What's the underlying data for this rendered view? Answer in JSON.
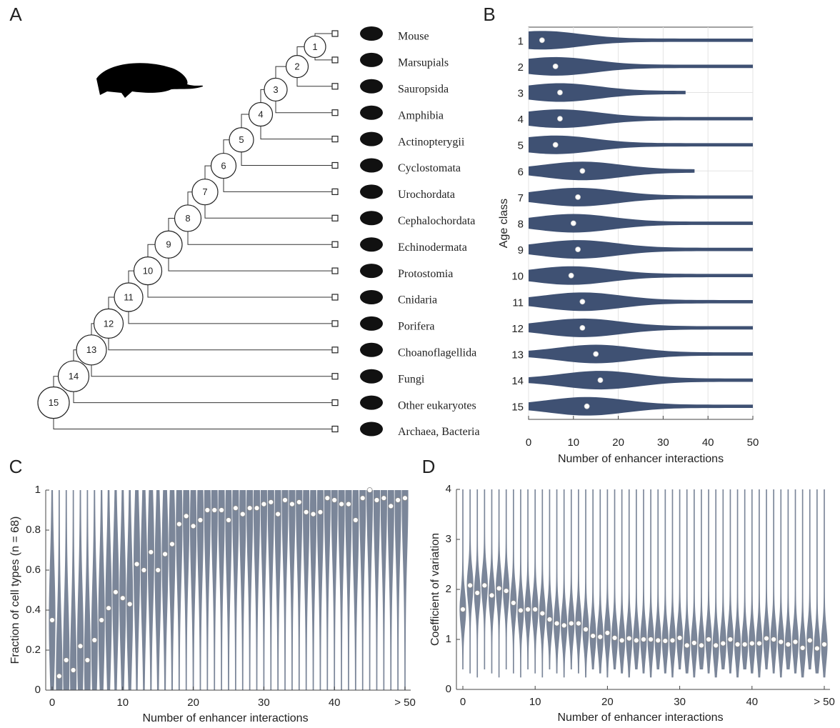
{
  "panels": [
    "A",
    "B",
    "C",
    "D"
  ],
  "tree": {
    "nodes": [
      "1",
      "2",
      "3",
      "4",
      "5",
      "6",
      "7",
      "8",
      "9",
      "10",
      "11",
      "12",
      "13",
      "14",
      "15"
    ],
    "taxa": [
      "Mouse",
      "Marsupials",
      "Sauropsida",
      "Amphibia",
      "Actinopterygii",
      "Cyclostomata",
      "Urochordata",
      "Cephalochordata",
      "Echinodermata",
      "Protostomia",
      "Cnidaria",
      "Porifera",
      "Choanoflagellida",
      "Fungi",
      "Other eukaryotes",
      "Archaea, Bacteria"
    ]
  },
  "chart_data": [
    {
      "type": "violin-h",
      "y_label": "Age class",
      "x_label": "Number of enhancer interactions",
      "categories": [
        "1",
        "2",
        "3",
        "4",
        "5",
        "6",
        "7",
        "8",
        "9",
        "10",
        "11",
        "12",
        "13",
        "14",
        "15"
      ],
      "values": [
        3,
        6,
        7,
        7,
        6,
        12,
        11,
        10,
        11,
        9.5,
        12,
        12,
        15,
        16,
        13
      ],
      "max": [
        50,
        50,
        35,
        50,
        50,
        37,
        50,
        50,
        50,
        50,
        50,
        50,
        50,
        50,
        50
      ],
      "color": "#3f5173",
      "xlim": [
        0,
        50
      ],
      "xticks": [
        0,
        10,
        20,
        30,
        40,
        50
      ],
      "grid": true
    },
    {
      "type": "violin-v",
      "x_label": "Number of enhancer interactions",
      "y_label": "Fraction of cell types (n = 68)",
      "x": [
        0,
        1,
        2,
        3,
        4,
        5,
        6,
        7,
        8,
        9,
        10,
        11,
        12,
        13,
        14,
        15,
        16,
        17,
        18,
        19,
        20,
        21,
        22,
        23,
        24,
        25,
        26,
        27,
        28,
        29,
        30,
        31,
        32,
        33,
        34,
        35,
        36,
        37,
        38,
        39,
        40,
        41,
        42,
        43,
        44,
        45,
        46,
        47,
        48,
        49,
        50
      ],
      "values": [
        0.35,
        0.07,
        0.15,
        0.1,
        0.22,
        0.15,
        0.25,
        0.35,
        0.41,
        0.49,
        0.46,
        0.43,
        0.63,
        0.6,
        0.69,
        0.6,
        0.68,
        0.73,
        0.83,
        0.87,
        0.82,
        0.85,
        0.9,
        0.9,
        0.9,
        0.85,
        0.91,
        0.88,
        0.91,
        0.91,
        0.93,
        0.94,
        0.88,
        0.95,
        0.93,
        0.94,
        0.89,
        0.88,
        0.89,
        0.96,
        0.95,
        0.93,
        0.93,
        0.85,
        0.96,
        1,
        0.95,
        0.96,
        0.92,
        0.95,
        0.96
      ],
      "color": "#7b8699",
      "xlim": [
        0,
        50
      ],
      "xticks": [
        0,
        10,
        20,
        30,
        40,
        {
          "value": 50,
          "label": "> 50"
        }
      ],
      "ylim": [
        0,
        1
      ],
      "yticks": [
        0,
        0.2,
        0.4,
        0.6,
        0.8,
        1
      ]
    },
    {
      "type": "violin-v",
      "x_label": "Number of enhancer interactions",
      "y_label": "Coefficient of variation",
      "x": [
        0,
        1,
        2,
        3,
        4,
        5,
        6,
        7,
        8,
        9,
        10,
        11,
        12,
        13,
        14,
        15,
        16,
        17,
        18,
        19,
        20,
        21,
        22,
        23,
        24,
        25,
        26,
        27,
        28,
        29,
        30,
        31,
        32,
        33,
        34,
        35,
        36,
        37,
        38,
        39,
        40,
        41,
        42,
        43,
        44,
        45,
        46,
        47,
        48,
        49,
        50
      ],
      "values": [
        1.6,
        2.08,
        1.93,
        2.08,
        1.88,
        2.02,
        1.97,
        1.73,
        1.58,
        1.6,
        1.6,
        1.52,
        1.4,
        1.32,
        1.28,
        1.32,
        1.32,
        1.2,
        1.07,
        1.05,
        1.13,
        1.03,
        0.98,
        1.02,
        0.98,
        1,
        1,
        0.98,
        0.97,
        0.98,
        1.03,
        0.88,
        0.93,
        0.88,
        1,
        0.88,
        0.92,
        1,
        0.9,
        0.9,
        0.92,
        0.92,
        1.02,
        1,
        0.95,
        0.9,
        0.95,
        0.83,
        0.98,
        0.82,
        0.9
      ],
      "color": "#7b8699",
      "xlim": [
        0,
        50
      ],
      "xticks": [
        0,
        10,
        20,
        30,
        40,
        {
          "value": 50,
          "label": "> 50"
        }
      ],
      "ylim": [
        0,
        4
      ],
      "yticks": [
        0,
        1,
        2,
        3,
        4
      ]
    }
  ]
}
